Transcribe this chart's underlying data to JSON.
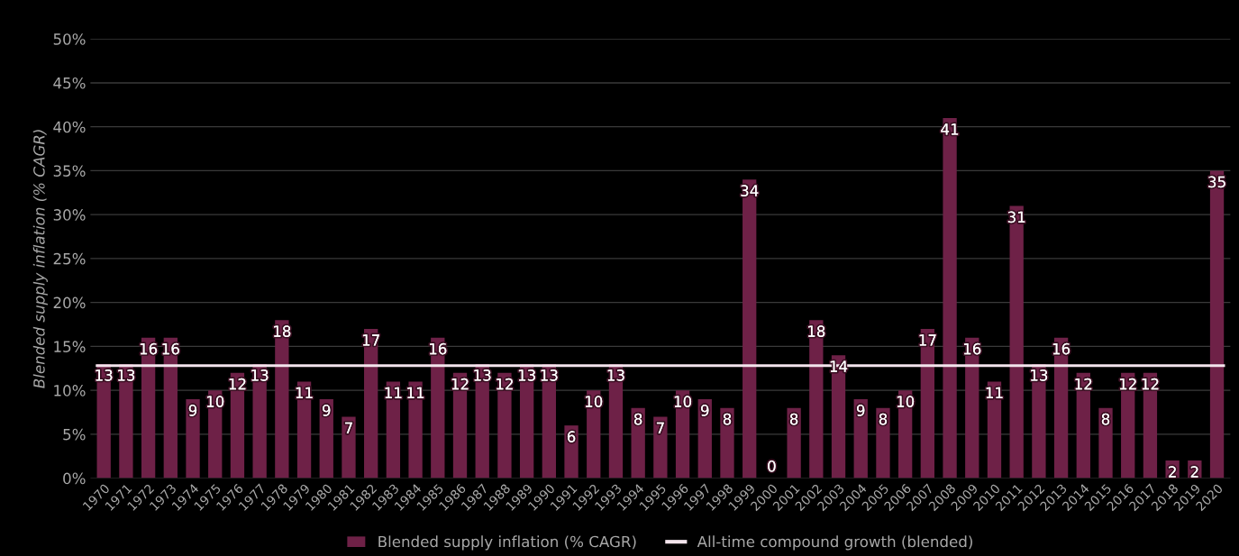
{
  "chart_data": {
    "type": "bar",
    "ylabel": "Blended supply inflation (% CAGR)",
    "categories": [
      "1970",
      "1971",
      "1972",
      "1973",
      "1974",
      "1975",
      "1976",
      "1977",
      "1978",
      "1979",
      "1980",
      "1981",
      "1982",
      "1983",
      "1984",
      "1985",
      "1986",
      "1987",
      "1988",
      "1989",
      "1990",
      "1991",
      "1992",
      "1993",
      "1994",
      "1995",
      "1996",
      "1997",
      "1998",
      "1999",
      "2000",
      "2001",
      "2002",
      "2003",
      "2004",
      "2005",
      "2006",
      "2007",
      "2008",
      "2009",
      "2010",
      "2011",
      "2012",
      "2013",
      "2014",
      "2015",
      "2016",
      "2017",
      "2018",
      "2019",
      "2020"
    ],
    "series": [
      {
        "name": "Blended supply inflation (% CAGR)",
        "color": "#6e2147",
        "values": [
          13,
          13,
          16,
          16,
          9,
          10,
          12,
          13,
          18,
          11,
          9,
          7,
          17,
          11,
          11,
          16,
          12,
          13,
          12,
          13,
          13,
          6,
          10,
          13,
          8,
          7,
          10,
          9,
          8,
          34,
          0,
          8,
          18,
          14,
          9,
          8,
          10,
          17,
          41,
          16,
          11,
          31,
          13,
          16,
          12,
          8,
          12,
          12,
          2,
          2,
          35
        ]
      }
    ],
    "ref_lines": [
      {
        "axis": "y",
        "value": 12.8,
        "label": "All-time compound growth (blended)",
        "color": "#f3e4ec"
      }
    ],
    "ylim": [
      0,
      50
    ],
    "yticks": [
      {
        "value": 0,
        "label": "0%"
      },
      {
        "value": 5,
        "label": "5%"
      },
      {
        "value": 10,
        "label": "10%"
      },
      {
        "value": 15,
        "label": "15%"
      },
      {
        "value": 20,
        "label": "20%"
      },
      {
        "value": 25,
        "label": "25%"
      },
      {
        "value": 30,
        "label": "30%"
      },
      {
        "value": 35,
        "label": "35%"
      },
      {
        "value": 40,
        "label": "40%"
      },
      {
        "value": 45,
        "label": "45%"
      },
      {
        "value": 50,
        "label": "50%"
      }
    ],
    "grid": "y",
    "legend": "bottom",
    "data_labels": true
  }
}
